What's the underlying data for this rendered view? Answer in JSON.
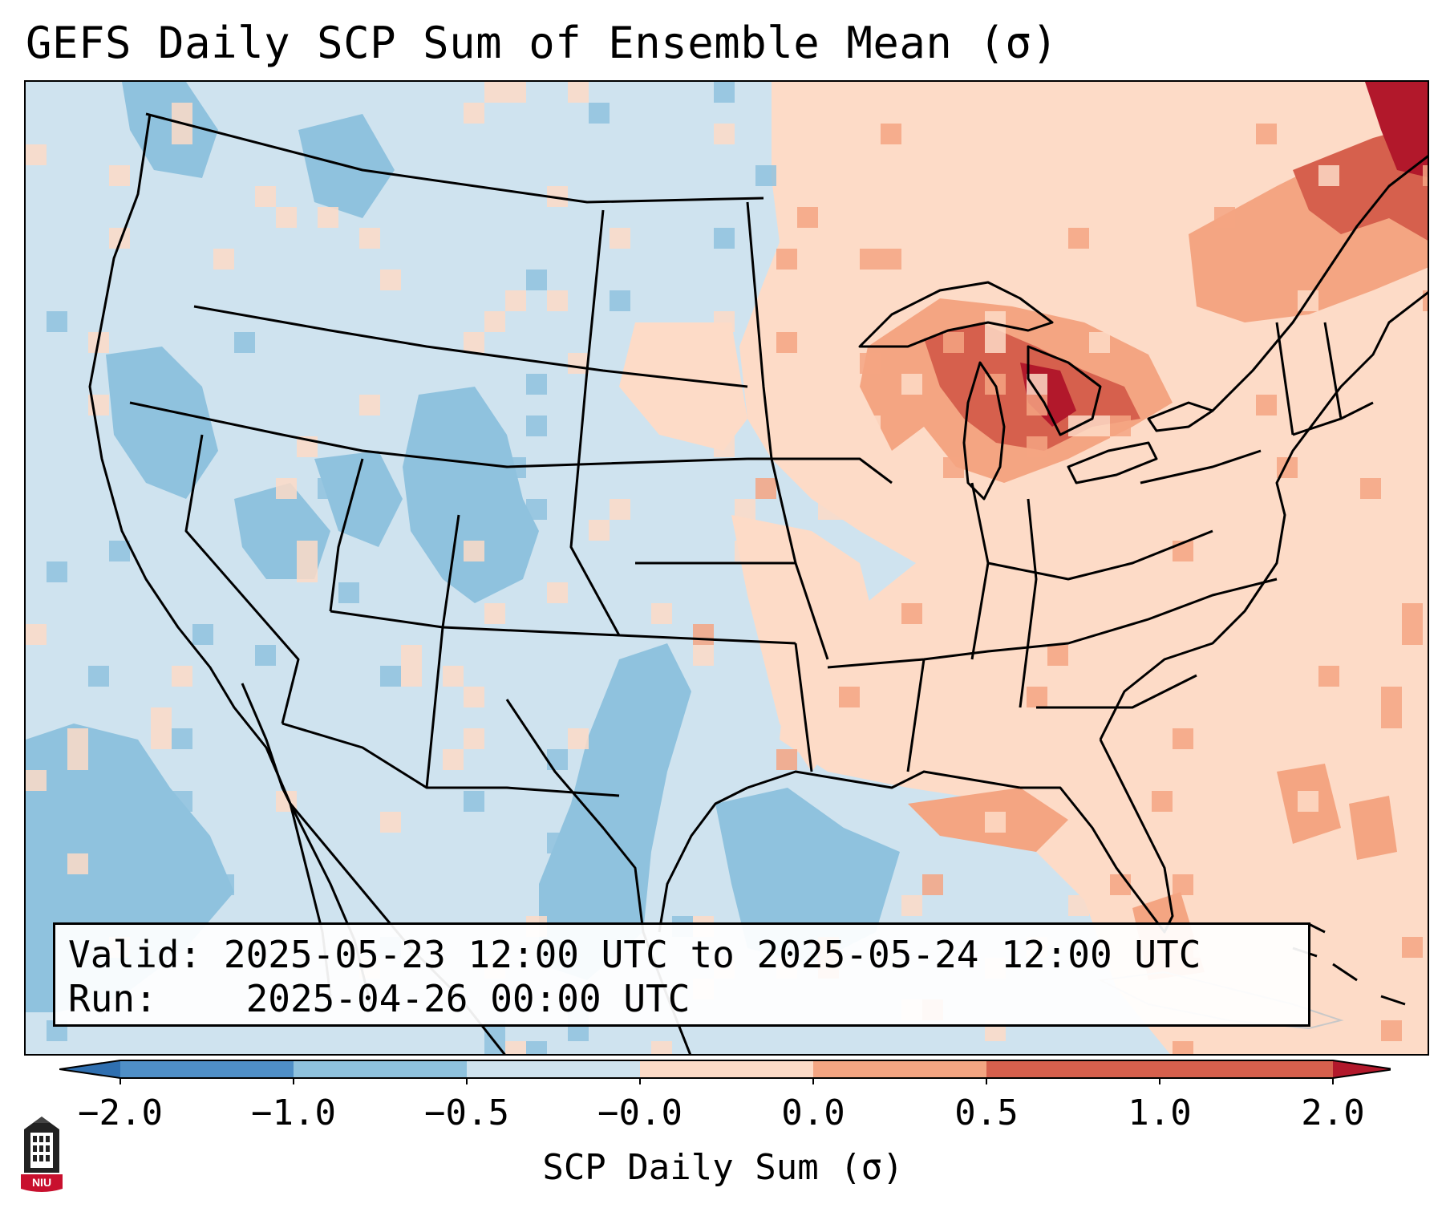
{
  "title": "GEFS Daily SCP Sum of Ensemble Mean (σ)",
  "info": {
    "valid_label": "Valid:",
    "valid_value": "2025-05-23 12:00 UTC to 2025-05-24 12:00 UTC",
    "run_label": "Run:",
    "run_value": "2025-04-26 00:00 UTC"
  },
  "colorbar": {
    "label": "SCP Daily Sum (σ)",
    "ticks": [
      "−2.0",
      "−1.0",
      "−0.5",
      "−0.0",
      "0.0",
      "0.5",
      "1.0",
      "2.0"
    ],
    "colors": [
      "#4f8fc7",
      "#8fc2de",
      "#cfe3ef",
      "#fddbc7",
      "#f4a582",
      "#d6604d"
    ],
    "extend_low_color": "#2f6fb0",
    "extend_high_color": "#b2182b"
  },
  "map": {
    "background_color": "#cfe3ef",
    "pale_blue": "#cfe3ef",
    "mid_blue": "#8fc2de",
    "light_red": "#fddbc7",
    "mid_red": "#f4a582",
    "red": "#d6604d",
    "dark_red": "#b2182b"
  },
  "logo": {
    "text": "NIU",
    "icon": "niu-building-icon"
  }
}
